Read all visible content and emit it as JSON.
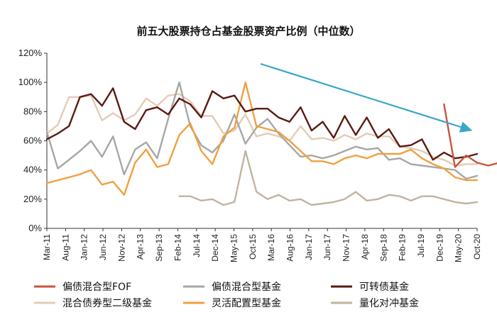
{
  "chart_data": {
    "type": "line",
    "title": "前五大股票持仓占基金股票资产比例（中位数）",
    "ylim": [
      0,
      120
    ],
    "yticks": [
      0,
      20,
      40,
      60,
      80,
      100,
      120
    ],
    "ytick_labels": [
      "0%",
      "20%",
      "40%",
      "60%",
      "80%",
      "100%",
      "120%"
    ],
    "xtick_labels": [
      "Mar-11",
      "Aug-11",
      "Jan-12",
      "Jun-12",
      "Nov-12",
      "Apr-13",
      "Sep-13",
      "Feb-14",
      "Jul-14",
      "Dec-14",
      "May-15",
      "Oct-15",
      "Mar-16",
      "Aug-16",
      "Jan-17",
      "Jun-17",
      "Nov-17",
      "Apr-18",
      "Sep-18",
      "Feb-19",
      "Jul-19",
      "Dec-19",
      "May-20",
      "Oct-20"
    ],
    "n_points": 40,
    "annotation": "downward trend arrow",
    "series": [
      {
        "name": "偏债混合型FOF",
        "color": "#c8553d",
        "start": 36,
        "values": [
          85,
          42,
          50,
          45,
          43,
          45
        ]
      },
      {
        "name": "偏债混合型基金",
        "color": "#a6a6a6",
        "start": 0,
        "values": [
          66,
          41,
          47,
          53,
          60,
          49,
          63,
          37,
          54,
          59,
          48,
          75,
          100,
          70,
          57,
          52,
          60,
          78,
          58,
          69,
          75,
          65,
          57,
          49,
          50,
          48,
          50,
          53,
          56,
          54,
          55,
          47,
          48,
          44,
          43,
          42,
          41,
          40,
          34,
          36
        ]
      },
      {
        "name": "可转债基金",
        "color": "#5a1a12",
        "start": 0,
        "values": [
          61,
          65,
          70,
          90,
          92,
          84,
          96,
          73,
          68,
          81,
          83,
          78,
          89,
          85,
          76,
          94,
          89,
          91,
          80,
          82,
          82,
          76,
          73,
          83,
          67,
          73,
          62,
          77,
          64,
          76,
          62,
          68,
          56,
          57,
          61,
          47,
          52,
          48,
          49,
          51
        ]
      },
      {
        "name": "混合债券型二级基金",
        "color": "#e3ccb5",
        "start": 0,
        "values": [
          65,
          71,
          90,
          90,
          91,
          74,
          79,
          74,
          78,
          89,
          84,
          91,
          92,
          87,
          77,
          77,
          65,
          67,
          78,
          63,
          65,
          63,
          60,
          70,
          61,
          62,
          60,
          64,
          61,
          65,
          63,
          63,
          56,
          55,
          53,
          49,
          47,
          43,
          44,
          44
        ]
      },
      {
        "name": "灵活配置型基金",
        "color": "#f0a040",
        "start": 0,
        "values": [
          31,
          33,
          35,
          37,
          40,
          30,
          32,
          23,
          45,
          54,
          42,
          44,
          64,
          72,
          53,
          44,
          63,
          69,
          100,
          70,
          68,
          66,
          60,
          53,
          46,
          46,
          44,
          48,
          50,
          48,
          51,
          51,
          51,
          54,
          48,
          44,
          41,
          35,
          33,
          33
        ]
      },
      {
        "name": "量化对冲基金",
        "color": "#c2b3a0",
        "start": 12,
        "values": [
          22,
          22,
          19,
          20,
          16,
          18,
          53,
          25,
          20,
          23,
          19,
          20,
          16,
          17,
          18,
          20,
          25,
          19,
          20,
          23,
          22,
          19,
          22,
          22,
          20,
          18,
          17,
          18
        ]
      }
    ]
  }
}
